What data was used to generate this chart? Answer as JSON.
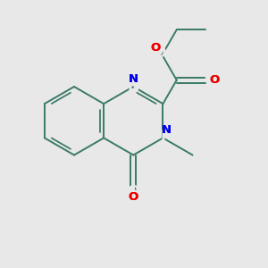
{
  "background_color": "#e8e8e8",
  "bond_color": "#3a7a68",
  "n_color": "#0000ee",
  "o_color": "#ee0000",
  "line_width": 1.4,
  "figsize": [
    3.0,
    3.0
  ],
  "dpi": 100,
  "xlim": [
    0,
    10
  ],
  "ylim": [
    0,
    10
  ]
}
